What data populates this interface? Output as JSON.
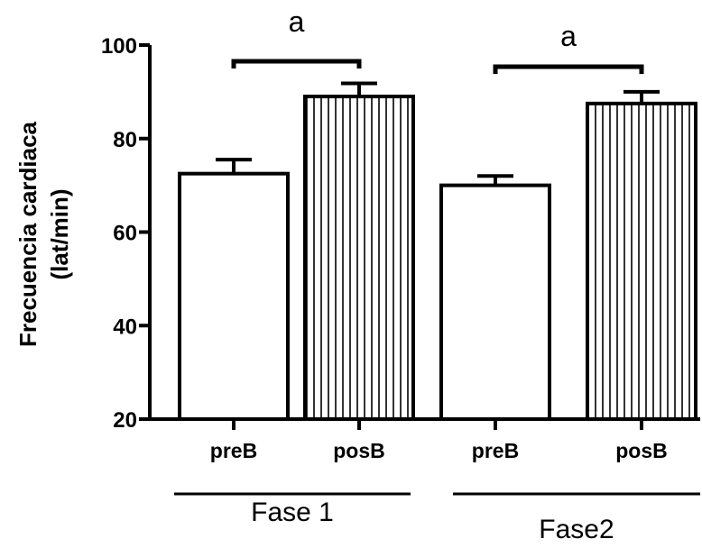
{
  "chart_data": {
    "type": "bar",
    "title": "",
    "ylabel_line1": "Frecuencia cardiaca",
    "ylabel_line2": "(lat/min)",
    "xlabel": "",
    "ylim": [
      20,
      100
    ],
    "yticks": [
      20,
      40,
      60,
      80,
      100
    ],
    "bars": [
      {
        "category": "preB",
        "group": "Fase 1",
        "value": 72.5,
        "error": 3.0,
        "pattern": "none"
      },
      {
        "category": "posB",
        "group": "Fase 1",
        "value": 89.0,
        "error": 2.8,
        "pattern": "vertical-stripes"
      },
      {
        "category": "preB",
        "group": "Fase2",
        "value": 70.0,
        "error": 2.0,
        "pattern": "none"
      },
      {
        "category": "posB",
        "group": "Fase2",
        "value": 87.5,
        "error": 2.5,
        "pattern": "vertical-stripes"
      }
    ],
    "groups": [
      "Fase 1",
      "Fase2"
    ],
    "significance": [
      {
        "label": "a",
        "bars": [
          0,
          1
        ]
      },
      {
        "label": "a",
        "bars": [
          2,
          3
        ]
      }
    ],
    "grid": false,
    "legend": "none",
    "colors": {
      "bar_fill": "#ffffff",
      "stroke": "#000000"
    }
  }
}
